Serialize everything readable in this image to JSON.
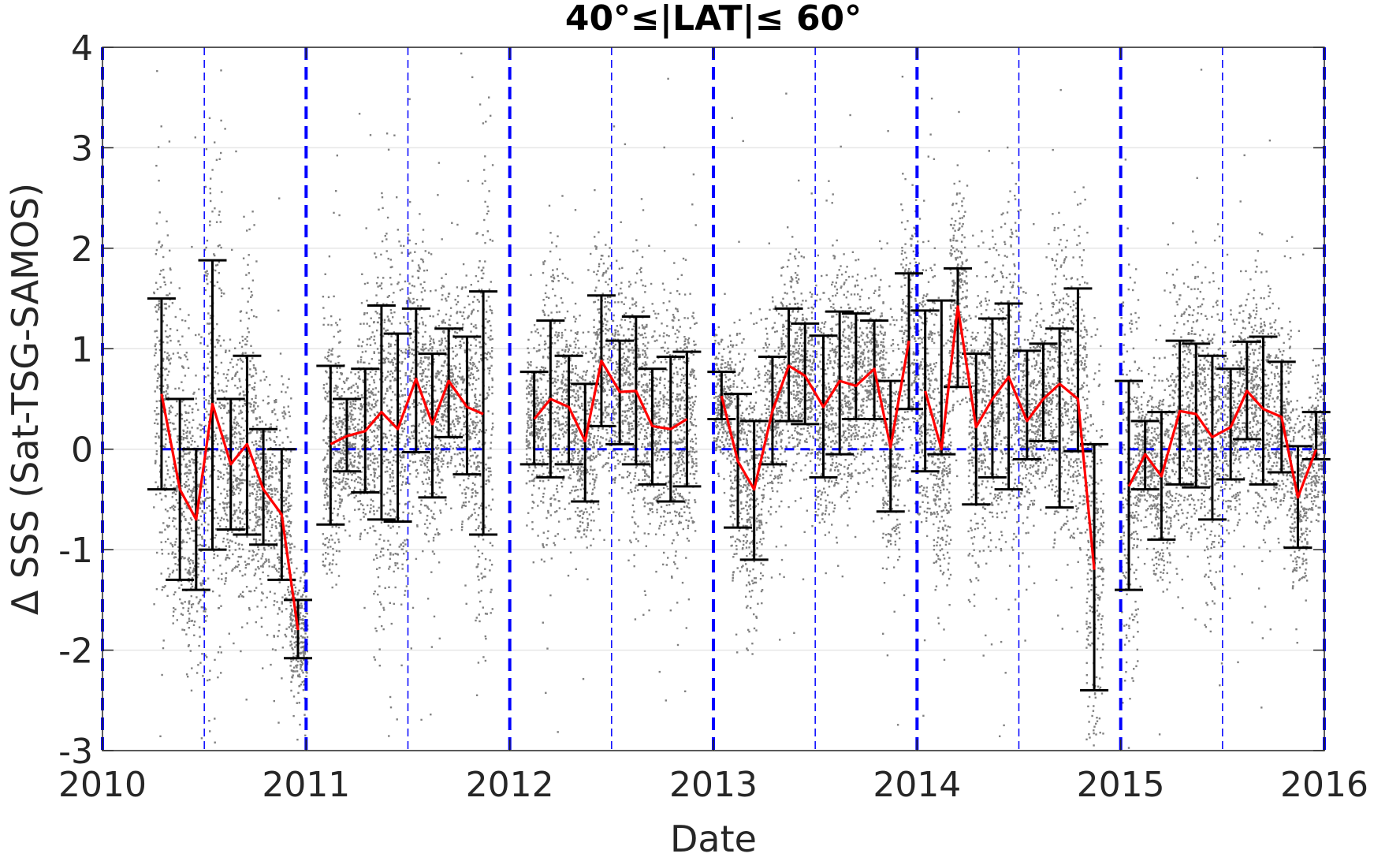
{
  "chart_data": {
    "type": "line",
    "title": "40°≤|LAT|≤ 60°",
    "xlabel": "Date",
    "ylabel": "Δ SSS (Sat-TSG-SAMOS)",
    "xlim": [
      2010,
      2016
    ],
    "ylim": [
      -3,
      4
    ],
    "xticks": [
      2010,
      2011,
      2012,
      2013,
      2014,
      2015,
      2016
    ],
    "xtick_labels": [
      "2010",
      "2011",
      "2012",
      "2013",
      "2014",
      "2015",
      "2016"
    ],
    "yticks": [
      4,
      3,
      2,
      1,
      0,
      -1,
      -2,
      -3
    ],
    "ytick_labels": [
      "4",
      "3",
      "2",
      "1",
      "0",
      "-1",
      "-2",
      "-3"
    ],
    "grid": true,
    "colors": {
      "scatter": "#808080",
      "mean_line": "#ff0000",
      "error_bars": "#000000",
      "reference_lines": "#0000ff",
      "grid": "#e6e6e6"
    },
    "reference": {
      "zero_line_y": 0,
      "year_boundaries": [
        2010,
        2011,
        2012,
        2013,
        2014,
        2015,
        2016
      ],
      "mid_year_lines": [
        2010.5,
        2011.5,
        2012.5,
        2013.5,
        2014.5,
        2015.5
      ]
    },
    "series": [
      {
        "segment": "2010",
        "x": [
          2010.29,
          2010.38,
          2010.46,
          2010.54,
          2010.63,
          2010.71,
          2010.79,
          2010.88,
          2010.96
        ],
        "mean": [
          0.55,
          -0.4,
          -0.7,
          0.45,
          -0.15,
          0.05,
          -0.4,
          -0.65,
          -1.8
        ],
        "low": [
          -0.4,
          -1.3,
          -1.4,
          -1.0,
          -0.8,
          -0.85,
          -0.95,
          -1.3,
          -2.08
        ],
        "high": [
          1.5,
          0.5,
          0.0,
          1.88,
          0.5,
          0.93,
          0.2,
          0.0,
          -1.5
        ]
      },
      {
        "segment": "2011",
        "x": [
          2011.12,
          2011.2,
          2011.29,
          2011.37,
          2011.45,
          2011.54,
          2011.62,
          2011.7,
          2011.79,
          2011.87
        ],
        "mean": [
          0.05,
          0.13,
          0.18,
          0.37,
          0.2,
          0.7,
          0.25,
          0.68,
          0.42,
          0.35
        ],
        "low": [
          -0.75,
          -0.22,
          -0.43,
          -0.7,
          -0.72,
          -0.03,
          -0.48,
          0.12,
          -0.25,
          -0.85
        ],
        "high": [
          0.83,
          0.5,
          0.8,
          1.43,
          1.15,
          1.4,
          0.95,
          1.2,
          1.12,
          1.57
        ]
      },
      {
        "segment": "2012",
        "x": [
          2012.12,
          2012.2,
          2012.29,
          2012.37,
          2012.45,
          2012.54,
          2012.62,
          2012.7,
          2012.79,
          2012.87
        ],
        "mean": [
          0.3,
          0.5,
          0.42,
          0.08,
          0.88,
          0.57,
          0.58,
          0.23,
          0.2,
          0.3
        ],
        "low": [
          -0.15,
          -0.28,
          -0.15,
          -0.52,
          0.23,
          0.05,
          -0.15,
          -0.35,
          -0.52,
          -0.37
        ],
        "high": [
          0.77,
          1.28,
          0.93,
          0.65,
          1.53,
          1.08,
          1.32,
          0.8,
          0.92,
          0.97
        ]
      },
      {
        "segment": "2013",
        "x": [
          2013.04,
          2013.12,
          2013.2,
          2013.29,
          2013.37,
          2013.45,
          2013.54,
          2013.62,
          2013.7,
          2013.79,
          2013.87,
          2013.96
        ],
        "mean": [
          0.53,
          -0.12,
          -0.4,
          0.38,
          0.83,
          0.73,
          0.42,
          0.68,
          0.63,
          0.8,
          0.02,
          1.08
        ],
        "low": [
          0.3,
          -0.78,
          -1.1,
          -0.15,
          0.28,
          0.25,
          -0.28,
          -0.05,
          0.3,
          0.3,
          -0.62,
          0.4
        ],
        "high": [
          0.77,
          0.55,
          0.28,
          0.92,
          1.4,
          1.25,
          1.13,
          1.37,
          1.35,
          1.28,
          0.68,
          1.75
        ]
      },
      {
        "segment": "2014",
        "x": [
          2014.04,
          2014.12,
          2014.2,
          2014.29,
          2014.37,
          2014.45,
          2014.54,
          2014.62,
          2014.7,
          2014.79,
          2014.87
        ],
        "mean": [
          0.58,
          0.0,
          1.42,
          0.22,
          0.5,
          0.72,
          0.28,
          0.5,
          0.65,
          0.5,
          -1.2
        ],
        "low": [
          -0.22,
          -0.05,
          0.62,
          -0.55,
          -0.28,
          -0.4,
          -0.1,
          0.08,
          -0.58,
          -0.02,
          -2.4
        ],
        "high": [
          1.38,
          1.48,
          1.8,
          0.95,
          1.3,
          1.45,
          0.98,
          1.05,
          1.2,
          1.6,
          0.05
        ]
      },
      {
        "segment": "2015",
        "x": [
          2015.04,
          2015.12,
          2015.2,
          2015.29,
          2015.37,
          2015.45,
          2015.54,
          2015.62,
          2015.7,
          2015.79,
          2015.87,
          2015.96
        ],
        "mean": [
          -0.37,
          -0.05,
          -0.27,
          0.38,
          0.35,
          0.12,
          0.22,
          0.58,
          0.4,
          0.32,
          -0.48,
          0.0
        ],
        "low": [
          -1.4,
          -0.4,
          -0.9,
          -0.35,
          -0.38,
          -0.7,
          -0.3,
          0.1,
          -0.35,
          -0.23,
          -0.98,
          -0.1
        ],
        "high": [
          0.68,
          0.28,
          0.37,
          1.08,
          1.05,
          0.93,
          0.8,
          1.07,
          1.12,
          0.87,
          0.03,
          0.37
        ]
      }
    ]
  }
}
